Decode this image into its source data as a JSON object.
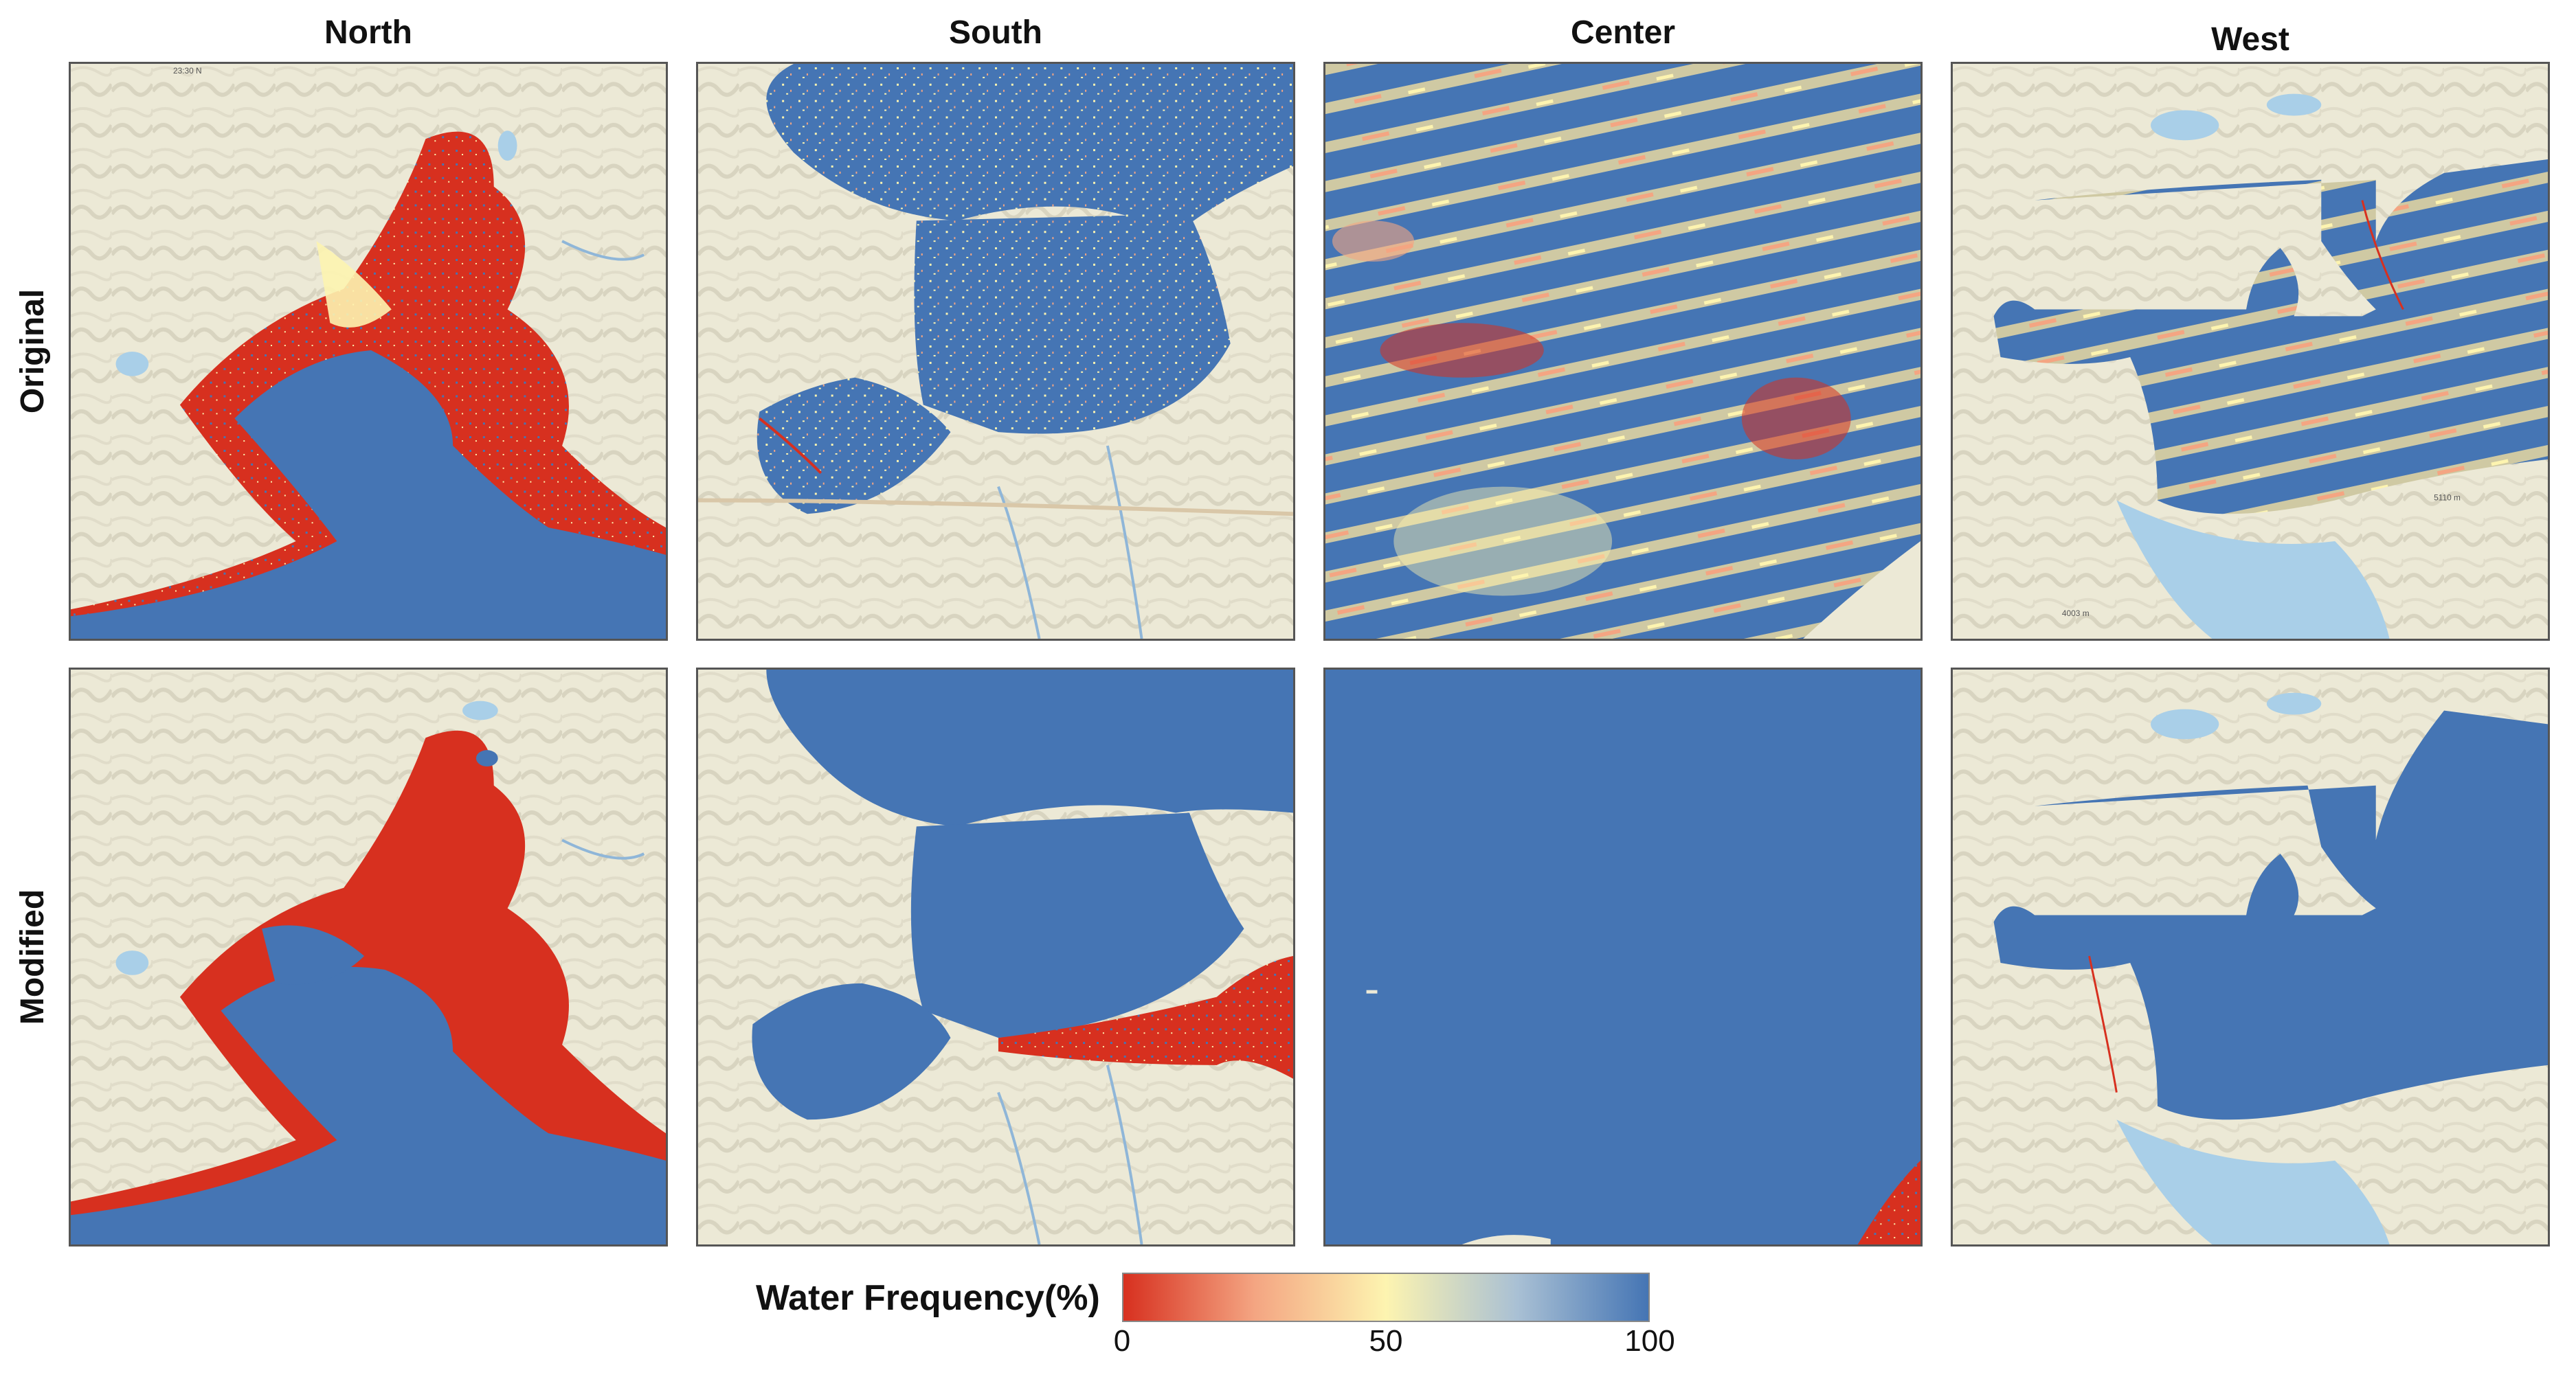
{
  "columns": [
    "North",
    "South",
    "Center",
    "West"
  ],
  "rows": [
    "Original",
    "Modified"
  ],
  "legend": {
    "title": "Water Frequency(%)",
    "min_label": "0",
    "mid_label": "50",
    "max_label": "100",
    "gradient": [
      "#d7301f",
      "#f4a582",
      "#fdf4b0",
      "#a9c0d4",
      "#4575b4"
    ]
  },
  "map_labels": {
    "north_scale": "23:30 N",
    "west_elev_1": "5110 m",
    "west_elev_2": "4003 m"
  },
  "colors": {
    "water_high": "#4575b4",
    "water_low": "#d7301f",
    "water_mid": "#fdf4b0",
    "land": "#ece9d6",
    "lake": "#a9cfe8",
    "terrain": "#c9c6b4"
  },
  "panels": [
    {
      "name": "north-original",
      "dominant": "mixed-red-blue"
    },
    {
      "name": "south-original",
      "dominant": "blue"
    },
    {
      "name": "center-original",
      "dominant": "striped-blue-yellow-red"
    },
    {
      "name": "west-original",
      "dominant": "striped-blue"
    },
    {
      "name": "north-modified",
      "dominant": "mixed-red-blue"
    },
    {
      "name": "south-modified",
      "dominant": "blue"
    },
    {
      "name": "center-modified",
      "dominant": "blue"
    },
    {
      "name": "west-modified",
      "dominant": "blue"
    }
  ]
}
